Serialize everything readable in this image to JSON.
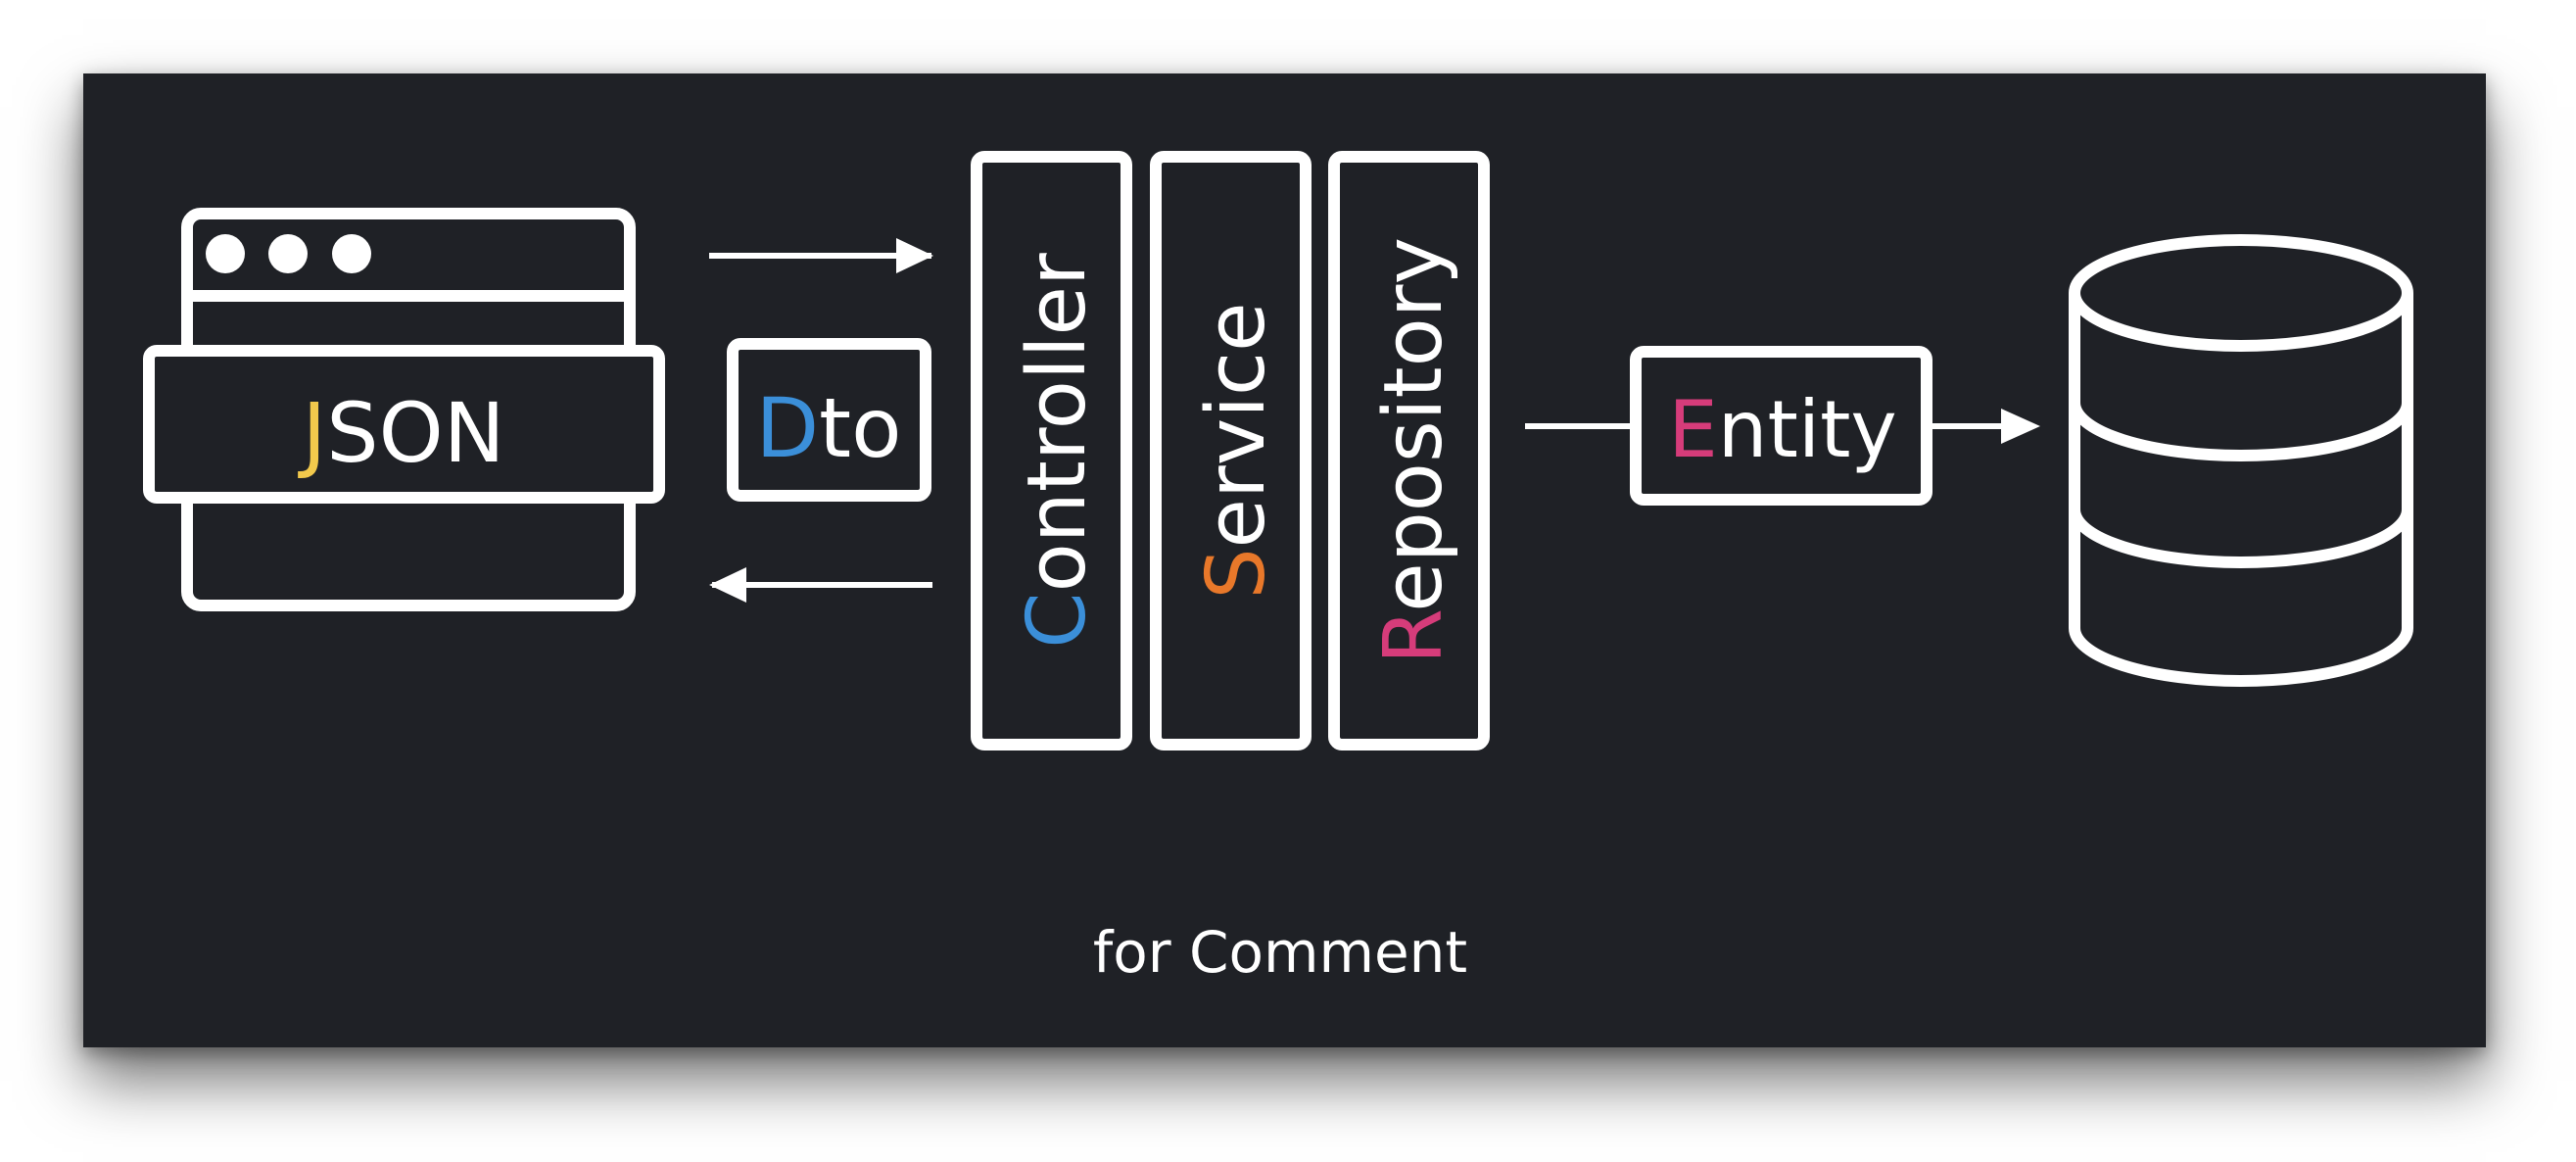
{
  "diagram": {
    "json_box": {
      "first": "J",
      "rest": "SON"
    },
    "dto_box": {
      "first": "D",
      "rest": "to"
    },
    "layers": [
      {
        "first": "C",
        "rest": "ontroller"
      },
      {
        "first": "S",
        "rest": "ervice"
      },
      {
        "first": "R",
        "rest": "epository"
      }
    ],
    "entity_box": {
      "first": "E",
      "rest": "ntity"
    },
    "caption": "for Comment"
  },
  "colors": {
    "background": "#1f2126",
    "stroke": "#ffffff",
    "json_accent": "#f2c94c",
    "dto_accent": "#3b8fd9",
    "controller_accent": "#3b8fd9",
    "service_accent": "#e8782a",
    "repository_accent": "#d63c7a",
    "entity_accent": "#d63c7a"
  },
  "icons": [
    "browser-window-icon",
    "database-icon",
    "arrow-right-icon",
    "arrow-left-icon"
  ]
}
